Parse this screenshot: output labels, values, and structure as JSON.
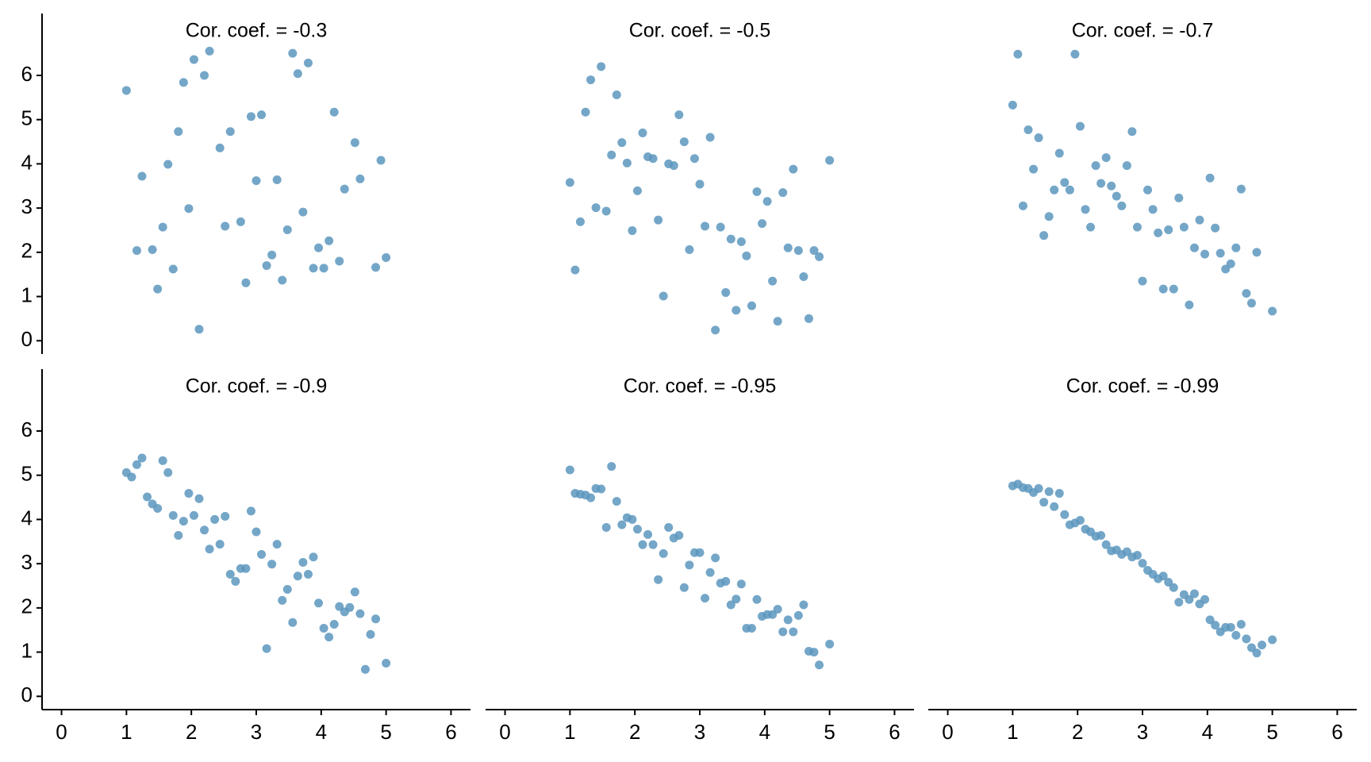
{
  "chart_data": [
    {
      "type": "scatter",
      "title": "Cor. coef. = -0.3",
      "color": "#5c97be",
      "xlim": [
        -0.3,
        6.3
      ],
      "ylim": [
        -0.3,
        7.4
      ],
      "yticks": [
        0,
        1,
        2,
        3,
        4,
        5,
        6
      ],
      "x": [
        1.0,
        1.16,
        1.24,
        1.4,
        1.48,
        1.56,
        1.64,
        1.72,
        1.8,
        1.88,
        1.96,
        2.04,
        2.12,
        2.2,
        2.28,
        2.44,
        2.52,
        2.6,
        2.76,
        2.84,
        2.92,
        3.0,
        3.08,
        3.16,
        3.24,
        3.32,
        3.4,
        3.48,
        3.56,
        3.64,
        3.72,
        3.8,
        3.88,
        3.96,
        4.04,
        4.12,
        4.2,
        4.28,
        4.36,
        4.52,
        4.6,
        4.84,
        4.92,
        5.0
      ],
      "values": [
        5.66,
        2.04,
        3.72,
        2.06,
        1.17,
        2.57,
        3.99,
        1.62,
        4.73,
        5.84,
        2.99,
        6.36,
        0.26,
        6.0,
        6.55,
        4.36,
        2.59,
        4.73,
        2.69,
        1.31,
        5.07,
        3.62,
        5.11,
        1.7,
        1.94,
        3.64,
        1.37,
        2.51,
        6.5,
        6.04,
        2.91,
        6.28,
        1.64,
        2.1,
        1.64,
        2.26,
        5.17,
        1.8,
        3.43,
        4.48,
        3.66,
        1.66,
        4.08,
        1.88
      ]
    },
    {
      "type": "scatter",
      "title": "Cor. coef. = -0.5",
      "color": "#5c97be",
      "xlim": [
        -0.3,
        6.3
      ],
      "ylim": [
        -0.3,
        7.4
      ],
      "x": [
        1.0,
        1.08,
        1.16,
        1.24,
        1.32,
        1.4,
        1.48,
        1.56,
        1.64,
        1.72,
        1.8,
        1.88,
        1.96,
        2.04,
        2.12,
        2.2,
        2.28,
        2.36,
        2.44,
        2.52,
        2.6,
        2.68,
        2.76,
        2.84,
        2.92,
        3.0,
        3.08,
        3.16,
        3.24,
        3.32,
        3.4,
        3.48,
        3.56,
        3.64,
        3.72,
        3.8,
        3.88,
        3.96,
        4.04,
        4.12,
        4.2,
        4.28,
        4.36,
        4.44,
        4.52,
        4.6,
        4.68,
        4.76,
        4.84,
        5.0
      ],
      "values": [
        3.58,
        1.6,
        2.69,
        5.17,
        5.9,
        3.01,
        6.2,
        2.93,
        4.2,
        5.56,
        4.48,
        4.02,
        2.49,
        3.39,
        4.7,
        4.16,
        4.12,
        2.73,
        1.01,
        4.0,
        3.96,
        5.11,
        4.5,
        2.06,
        4.12,
        3.54,
        2.59,
        4.6,
        0.24,
        2.57,
        1.09,
        2.3,
        0.69,
        2.24,
        1.92,
        0.79,
        3.37,
        2.65,
        3.15,
        1.35,
        0.44,
        3.35,
        2.1,
        3.88,
        2.04,
        1.45,
        0.5,
        2.04,
        1.9,
        4.08
      ]
    },
    {
      "type": "scatter",
      "title": "Cor. coef. = -0.7",
      "color": "#5c97be",
      "xlim": [
        -0.3,
        6.3
      ],
      "ylim": [
        -0.3,
        7.4
      ],
      "x": [
        1.0,
        1.08,
        1.16,
        1.24,
        1.32,
        1.4,
        1.48,
        1.56,
        1.64,
        1.72,
        1.8,
        1.88,
        1.96,
        2.04,
        2.12,
        2.2,
        2.28,
        2.36,
        2.44,
        2.52,
        2.6,
        2.68,
        2.76,
        2.84,
        2.92,
        3.0,
        3.08,
        3.16,
        3.24,
        3.32,
        3.4,
        3.48,
        3.56,
        3.64,
        3.72,
        3.8,
        3.88,
        3.96,
        4.04,
        4.12,
        4.2,
        4.28,
        4.36,
        4.44,
        4.52,
        4.6,
        4.68,
        4.76,
        5.0
      ],
      "values": [
        5.33,
        6.48,
        3.05,
        4.77,
        3.88,
        4.59,
        2.38,
        2.81,
        3.41,
        4.24,
        3.58,
        3.41,
        6.48,
        4.85,
        2.97,
        2.57,
        3.96,
        3.56,
        4.14,
        3.5,
        3.27,
        3.05,
        3.96,
        4.73,
        2.57,
        1.35,
        3.41,
        2.97,
        2.44,
        1.17,
        2.51,
        1.17,
        3.23,
        2.57,
        0.81,
        2.1,
        2.73,
        1.96,
        3.68,
        2.55,
        1.98,
        1.62,
        1.74,
        2.1,
        3.43,
        1.07,
        0.85,
        2.0,
        0.67
      ]
    },
    {
      "type": "scatter",
      "title": "Cor. coef. = -0.9",
      "color": "#5c97be",
      "xlim": [
        -0.3,
        6.3
      ],
      "ylim": [
        -0.3,
        7.4
      ],
      "xticks": [
        0,
        1,
        2,
        3,
        4,
        5,
        6
      ],
      "yticks": [
        0,
        1,
        2,
        3,
        4,
        5,
        6
      ],
      "x": [
        1.0,
        1.08,
        1.16,
        1.24,
        1.32,
        1.4,
        1.48,
        1.56,
        1.64,
        1.72,
        1.8,
        1.88,
        1.96,
        2.04,
        2.12,
        2.2,
        2.28,
        2.36,
        2.44,
        2.52,
        2.6,
        2.68,
        2.76,
        2.84,
        2.92,
        3.0,
        3.08,
        3.16,
        3.24,
        3.32,
        3.4,
        3.48,
        3.56,
        3.64,
        3.72,
        3.8,
        3.88,
        3.96,
        4.04,
        4.12,
        4.2,
        4.28,
        4.36,
        4.44,
        4.52,
        4.6,
        4.68,
        4.76,
        4.84,
        5.0
      ],
      "values": [
        5.06,
        4.96,
        5.24,
        5.39,
        4.51,
        4.35,
        4.25,
        5.33,
        5.06,
        4.09,
        3.64,
        3.96,
        4.59,
        4.09,
        4.47,
        3.76,
        3.33,
        4.0,
        3.44,
        4.07,
        2.76,
        2.6,
        2.89,
        2.89,
        4.19,
        3.72,
        3.21,
        1.08,
        2.99,
        3.44,
        2.17,
        2.42,
        1.67,
        2.72,
        3.03,
        2.76,
        3.15,
        2.11,
        1.54,
        1.34,
        1.63,
        2.03,
        1.91,
        2.01,
        2.36,
        1.87,
        0.61,
        1.4,
        1.75,
        0.75
      ]
    },
    {
      "type": "scatter",
      "title": "Cor. coef. = -0.95",
      "color": "#5c97be",
      "xlim": [
        -0.3,
        6.3
      ],
      "ylim": [
        -0.3,
        7.4
      ],
      "xticks": [
        0,
        1,
        2,
        3,
        4,
        5,
        6
      ],
      "x": [
        1.0,
        1.08,
        1.16,
        1.24,
        1.32,
        1.4,
        1.48,
        1.56,
        1.64,
        1.72,
        1.8,
        1.88,
        1.96,
        2.04,
        2.12,
        2.2,
        2.28,
        2.36,
        2.44,
        2.52,
        2.6,
        2.68,
        2.76,
        2.84,
        2.92,
        3.0,
        3.08,
        3.16,
        3.24,
        3.32,
        3.4,
        3.48,
        3.56,
        3.64,
        3.72,
        3.8,
        3.88,
        3.96,
        4.04,
        4.12,
        4.2,
        4.28,
        4.36,
        4.44,
        4.52,
        4.6,
        4.68,
        4.76,
        4.84,
        5.0
      ],
      "values": [
        5.12,
        4.59,
        4.57,
        4.55,
        4.49,
        4.7,
        4.69,
        3.82,
        5.2,
        4.41,
        3.88,
        4.04,
        4.0,
        3.78,
        3.43,
        3.66,
        3.43,
        2.64,
        3.23,
        3.82,
        3.58,
        3.64,
        2.46,
        2.97,
        3.25,
        3.25,
        2.22,
        2.8,
        3.13,
        2.56,
        2.6,
        2.07,
        2.2,
        2.54,
        1.54,
        1.54,
        2.19,
        1.81,
        1.85,
        1.85,
        1.97,
        1.46,
        1.73,
        1.46,
        1.83,
        2.07,
        1.02,
        1.0,
        0.71,
        1.18
      ]
    },
    {
      "type": "scatter",
      "title": "Cor. coef. = -0.99",
      "color": "#5c97be",
      "xlim": [
        -0.3,
        6.3
      ],
      "ylim": [
        -0.3,
        7.4
      ],
      "xticks": [
        0,
        1,
        2,
        3,
        4,
        5,
        6
      ],
      "x": [
        1.0,
        1.08,
        1.16,
        1.24,
        1.32,
        1.4,
        1.48,
        1.56,
        1.64,
        1.72,
        1.8,
        1.88,
        1.96,
        2.04,
        2.12,
        2.2,
        2.28,
        2.36,
        2.44,
        2.52,
        2.6,
        2.68,
        2.76,
        2.84,
        2.92,
        3.0,
        3.08,
        3.16,
        3.24,
        3.32,
        3.4,
        3.48,
        3.56,
        3.64,
        3.72,
        3.8,
        3.88,
        3.96,
        4.04,
        4.12,
        4.2,
        4.28,
        4.36,
        4.44,
        4.52,
        4.6,
        4.68,
        4.76,
        4.84,
        5.0
      ],
      "values": [
        4.76,
        4.8,
        4.72,
        4.7,
        4.61,
        4.7,
        4.39,
        4.63,
        4.29,
        4.59,
        4.11,
        3.88,
        3.92,
        3.98,
        3.78,
        3.72,
        3.62,
        3.64,
        3.43,
        3.29,
        3.31,
        3.21,
        3.27,
        3.15,
        3.19,
        3.01,
        2.85,
        2.76,
        2.66,
        2.72,
        2.58,
        2.46,
        2.13,
        2.3,
        2.19,
        2.32,
        2.09,
        2.19,
        1.73,
        1.61,
        1.46,
        1.56,
        1.56,
        1.38,
        1.63,
        1.3,
        1.1,
        0.98,
        1.16,
        1.28
      ]
    }
  ]
}
